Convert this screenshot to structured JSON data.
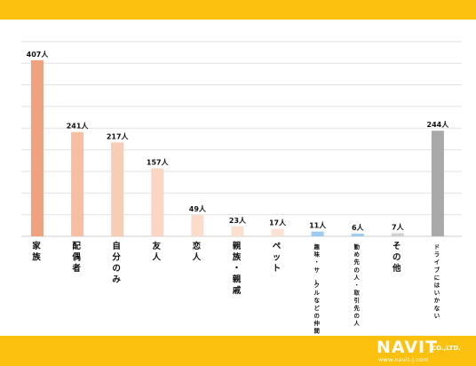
{
  "chart_data": {
    "type": "bar",
    "unit": "人",
    "categories": [
      "家族",
      "配偶者",
      "自分のみ",
      "友人",
      "恋人",
      "親族・親戚",
      "ペット",
      "趣味・サークルなどの仲間",
      "勤め先の人・取引先の人",
      "その他",
      "ドライブにはいかない"
    ],
    "values": [
      407,
      241,
      217,
      157,
      49,
      23,
      17,
      11,
      6,
      7,
      244
    ],
    "bar_colors": [
      "#f0a27e",
      "#f4bfa3",
      "#f7cdb5",
      "#f9d7c4",
      "#fadccb",
      "#fbe0d0",
      "#fbe2d3",
      "#9ccbef",
      "#9ccbef",
      "#d0d0d0",
      "#a9a9a9"
    ],
    "ylim": [
      0,
      450
    ],
    "grid": true
  },
  "colors": {
    "band": "#fcc10e",
    "grid": "#e2e2e2",
    "text": "#111111"
  },
  "logo": {
    "main": "NAVIT",
    "suffix": "CO.,LTD.",
    "url": "www.navit-j.com"
  }
}
